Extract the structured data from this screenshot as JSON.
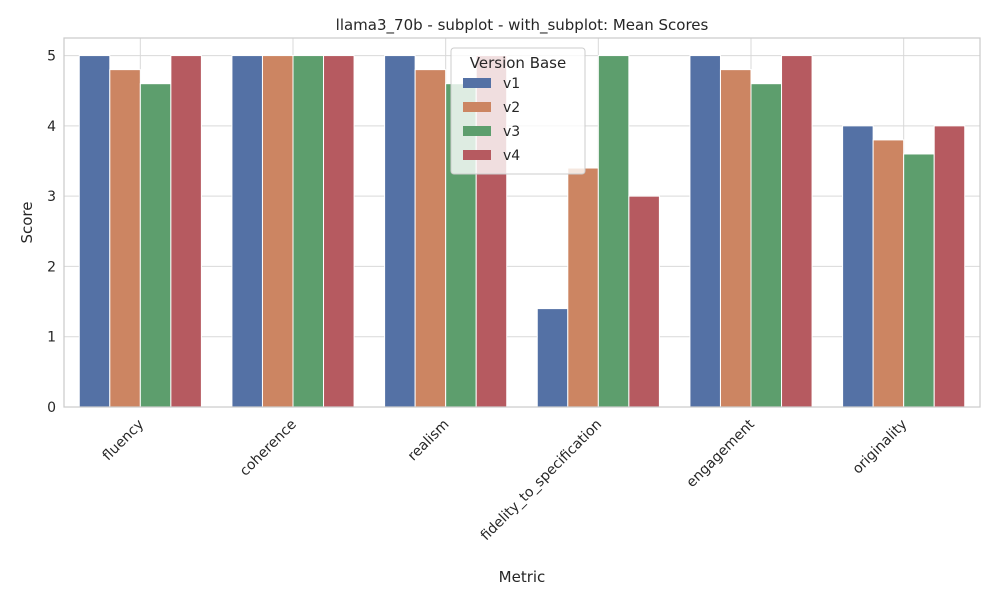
{
  "chart_data": {
    "type": "bar",
    "title": "llama3_70b - subplot - with_subplot: Mean Scores",
    "xlabel": "Metric",
    "ylabel": "Score",
    "categories": [
      "fluency",
      "coherence",
      "realism",
      "fidelity_to_specification",
      "engagement",
      "originality"
    ],
    "ylim": [
      0,
      5.25
    ],
    "yticks": [
      0,
      1,
      2,
      3,
      4,
      5
    ],
    "grid": true,
    "legend": {
      "title": "Version Base",
      "placement": "top-center"
    },
    "series": [
      {
        "name": "v1",
        "color": "#5471a5",
        "values": [
          5.0,
          5.0,
          5.0,
          1.4,
          5.0,
          4.0
        ]
      },
      {
        "name": "v2",
        "color": "#cc8562",
        "values": [
          4.8,
          5.0,
          4.8,
          3.4,
          4.8,
          3.8
        ]
      },
      {
        "name": "v3",
        "color": "#5d9e6d",
        "values": [
          4.6,
          5.0,
          4.6,
          5.0,
          4.6,
          3.6
        ]
      },
      {
        "name": "v4",
        "color": "#b65a60",
        "values": [
          5.0,
          5.0,
          5.0,
          3.0,
          5.0,
          4.0
        ]
      }
    ]
  }
}
